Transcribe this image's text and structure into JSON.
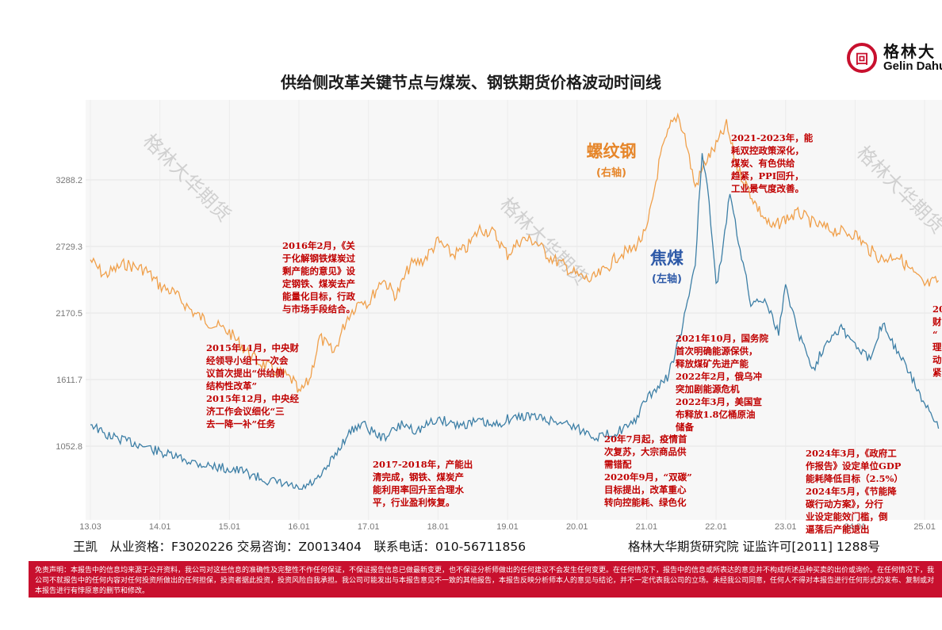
{
  "logo": {
    "icon": "gelin-logo-icon",
    "glyph": "回",
    "cn": "格林大",
    "en": "Gelin Dahua"
  },
  "title": "供给侧改革关键节点与煤炭、钢铁期货价格波动时间线",
  "chart_data": {
    "type": "line",
    "x_ticks": [
      "13.03",
      "14.01",
      "15.01",
      "16.01",
      "17.01",
      "18.01",
      "19.01",
      "20.01",
      "21.01",
      "22.01",
      "23.01",
      "24.01",
      "25.01"
    ],
    "y_left_ticks": [
      "1052.8",
      "1611.7",
      "2170.5",
      "2729.3",
      "3288.2"
    ],
    "series": [
      {
        "name": "螺纹钢",
        "axis_label": "(右轴)",
        "color": "#f0a04b",
        "x": [
          2013.0,
          2013.2,
          2013.5,
          2013.8,
          2014.0,
          2014.2,
          2014.5,
          2014.7,
          2015.0,
          2015.2,
          2015.4,
          2015.6,
          2015.8,
          2015.92,
          2016.0,
          2016.15,
          2016.3,
          2016.5,
          2016.7,
          2016.9,
          2017.0,
          2017.2,
          2017.4,
          2017.6,
          2017.8,
          2018.0,
          2018.2,
          2018.4,
          2018.6,
          2018.8,
          2019.0,
          2019.2,
          2019.4,
          2019.6,
          2019.8,
          2020.0,
          2020.2,
          2020.4,
          2020.6,
          2020.8,
          2021.0,
          2021.2,
          2021.35,
          2021.45,
          2021.55,
          2021.7,
          2021.85,
          2022.0,
          2022.15,
          2022.3,
          2022.45,
          2022.6,
          2022.8,
          2023.0,
          2023.2,
          2023.4,
          2023.6,
          2023.8,
          2024.0,
          2024.2,
          2024.4,
          2024.6,
          2024.8,
          2025.0,
          2025.2
        ],
        "y": [
          3600,
          3450,
          3560,
          3500,
          3350,
          3280,
          3080,
          3000,
          2900,
          2750,
          2620,
          2550,
          2480,
          2430,
          2300,
          2440,
          2850,
          2700,
          3050,
          3230,
          3180,
          3420,
          3250,
          3550,
          3600,
          3780,
          3650,
          3700,
          3900,
          3860,
          3650,
          3800,
          3780,
          3630,
          3550,
          3450,
          3400,
          3500,
          3650,
          3700,
          3870,
          4600,
          4900,
          5000,
          4800,
          4300,
          4550,
          4700,
          4900,
          4500,
          4300,
          4100,
          3900,
          4000,
          4050,
          3950,
          3900,
          3870,
          3850,
          3700,
          3600,
          3650,
          3500,
          3350,
          3400
        ]
      },
      {
        "name": "焦煤",
        "axis_label": "(左轴)",
        "color": "#3d7fa6",
        "x": [
          2013.0,
          2013.2,
          2013.5,
          2013.8,
          2014.0,
          2014.3,
          2014.6,
          2014.9,
          2015.2,
          2015.5,
          2015.8,
          2015.92,
          2016.0,
          2016.3,
          2016.5,
          2016.7,
          2016.9,
          2017.0,
          2017.2,
          2017.5,
          2017.7,
          2017.9,
          2018.0,
          2018.3,
          2018.6,
          2018.8,
          2019.0,
          2019.3,
          2019.6,
          2019.9,
          2020.0,
          2020.3,
          2020.5,
          2020.8,
          2021.0,
          2021.3,
          2021.5,
          2021.7,
          2021.8,
          2021.9,
          2022.0,
          2022.1,
          2022.2,
          2022.3,
          2022.5,
          2022.7,
          2022.9,
          2023.0,
          2023.2,
          2023.4,
          2023.6,
          2023.8,
          2024.0,
          2024.2,
          2024.4,
          2024.6,
          2024.8,
          2025.0,
          2025.2
        ],
        "y": [
          1250,
          1150,
          1100,
          1050,
          1000,
          950,
          900,
          870,
          840,
          770,
          730,
          710,
          680,
          780,
          960,
          1150,
          1250,
          1200,
          1120,
          1240,
          1180,
          1250,
          1280,
          1230,
          1260,
          1220,
          1280,
          1310,
          1270,
          1240,
          1200,
          1130,
          1160,
          1230,
          1450,
          1630,
          2000,
          2600,
          3500,
          3100,
          2400,
          2700,
          3200,
          2850,
          2250,
          2300,
          2000,
          2400,
          1980,
          1700,
          1950,
          2050,
          1900,
          1780,
          2100,
          1850,
          1650,
          1400,
          1200
        ]
      }
    ]
  },
  "watermarks": [
    "格林大华期货",
    "格林大华期货",
    "格林大华期货"
  ],
  "annotations": [
    "2016年2月，《关\n于化解钢铁煤炭过\n剩产能的意见》设\n定钢铁、煤炭去产\n能量化目标，行政\n与市场手段结合。",
    "2015年11月，中央财\n经领导小组十一次会\n议首次提出“供给侧\n结构性改革”\n2015年12月，中央经\n济工作会议细化“三\n去一降一补”任务",
    "2017-2018年，产能出\n清完成，钢铁、煤炭产\n能利用率回升至合理水\n平，行业盈利恢复。",
    "20年7月起，疫情首\n次复苏，大宗商品供\n需错配\n2020年9月，“双碳”\n目标提出，改革重心\n转向控能耗、绿色化",
    "2021年10月，国务院\n首次明确能源保供，\n释放煤矿先进产能\n2022年2月，俄乌冲\n突加剧能源危机\n2022年3月，美国宣\n布释放1.8亿桶原油\n储备",
    "2021-2023年，能\n耗双控政策深化，\n煤炭、有色供给\n趋紧，PPI回升，\n工业景气度改善。",
    "2024年3月，《政府工\n作报告》设定单位GDP\n能耗降低目标（2.5%）\n2024年5月，《节能降\n碳行动方案》，分行\n业设定能效门槛，倒\n逼落后产能退出",
    "20\n财\n“\n理\n动\n紧"
  ],
  "footer": {
    "left": "王凯　从业资格：F3020226 交易咨询：Z0013404　联系电话：010-56711856",
    "right": "格林大华期货研究院 证监许可[2011] 1288号"
  },
  "disclaimer": "免责声明：本报告中的信息均来源于公开资料，我公司对这些信息的准确性及完整性不作任何保证，不保证报告信息已做最新变更，也不保证分析师做出的任何建议不会发生任何变更。在任何情况下，报告中的信息或所表达的意见并不构成所述品种买卖的出价或询价。在任何情况下，我公司不就报告中的任何内容对任何投资所做出的任何担保，投资者据此投资，投资风险自我承担。我公司可能发出与本报告意见不一致的其他报告，本报告反映分析师本人的意见与结论，并不一定代表我公司的立场。未经我公司同意，任何人不得对本报告进行任何形式的发布、复制或对本报告进行有悖原意的删节和修改。"
}
